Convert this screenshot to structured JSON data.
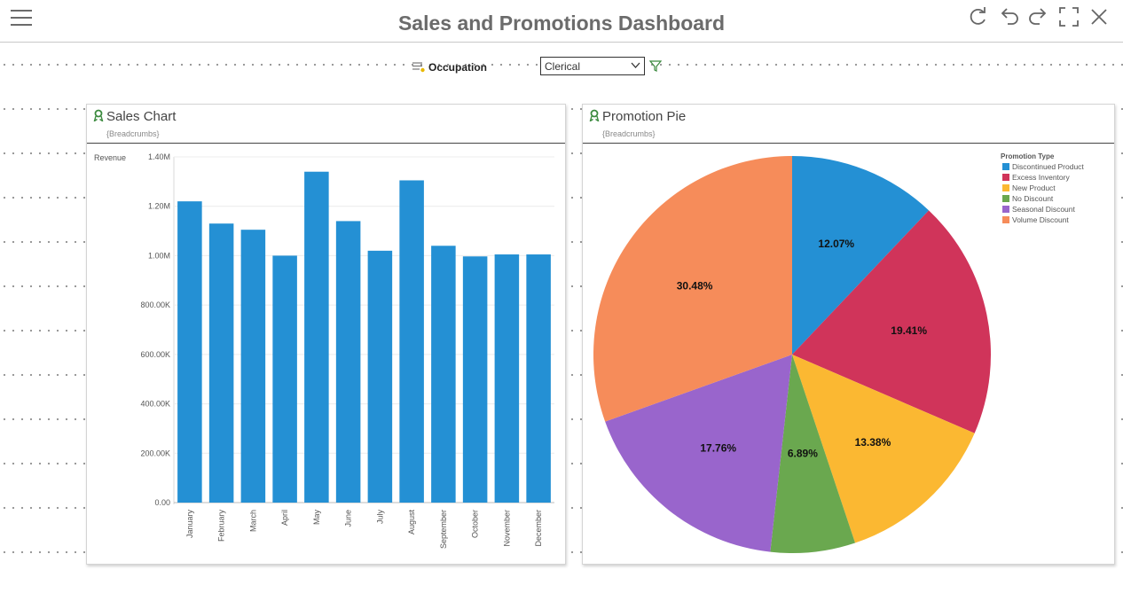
{
  "header": {
    "title": "Sales and Promotions Dashboard"
  },
  "toolbar": {
    "icons": [
      "refresh-icon",
      "undo-icon",
      "redo-icon",
      "fullscreen-icon",
      "close-icon"
    ]
  },
  "filter": {
    "label": "Occupation",
    "value": "Clerical"
  },
  "colors": {
    "bar": "#2490d4",
    "accent_green": "#3b8a3e"
  },
  "chart_data": [
    {
      "type": "bar",
      "title": "Sales Chart",
      "breadcrumbs": "{Breadcrumbs}",
      "ylabel": "Revenue",
      "xlabel": "",
      "ylim": [
        0,
        1400000
      ],
      "yticks": [
        0,
        200000,
        400000,
        600000,
        800000,
        1000000,
        1200000,
        1400000
      ],
      "ytick_labels": [
        "0.00",
        "200.00K",
        "400.00K",
        "600.00K",
        "800.00K",
        "1.00M",
        "1.20M",
        "1.40M"
      ],
      "grid": true,
      "categories": [
        "January",
        "February",
        "March",
        "April",
        "May",
        "June",
        "July",
        "August",
        "September",
        "October",
        "November",
        "December"
      ],
      "values": [
        1220000,
        1130000,
        1105000,
        1000000,
        1340000,
        1140000,
        1020000,
        1305000,
        1040000,
        997000,
        1005000,
        1005000
      ]
    },
    {
      "type": "pie",
      "title": "Promotion Pie",
      "breadcrumbs": "{Breadcrumbs}",
      "legend_title": "Promotion Type",
      "legend_position": "top-right",
      "slices": [
        {
          "name": "Discontinued Product",
          "value": 12.07,
          "label": "12.07%",
          "color": "#2490d4"
        },
        {
          "name": "Excess Inventory",
          "value": 19.41,
          "label": "19.41%",
          "color": "#d0345a"
        },
        {
          "name": "New Product",
          "value": 13.38,
          "label": "13.38%",
          "color": "#fbb832"
        },
        {
          "name": "No Discount",
          "value": 6.89,
          "label": "6.89%",
          "color": "#6aa84f"
        },
        {
          "name": "Seasonal Discount",
          "value": 17.76,
          "label": "17.76%",
          "color": "#9965cc"
        },
        {
          "name": "Volume Discount",
          "value": 30.48,
          "label": "30.48%",
          "color": "#f68c5a"
        }
      ]
    }
  ]
}
